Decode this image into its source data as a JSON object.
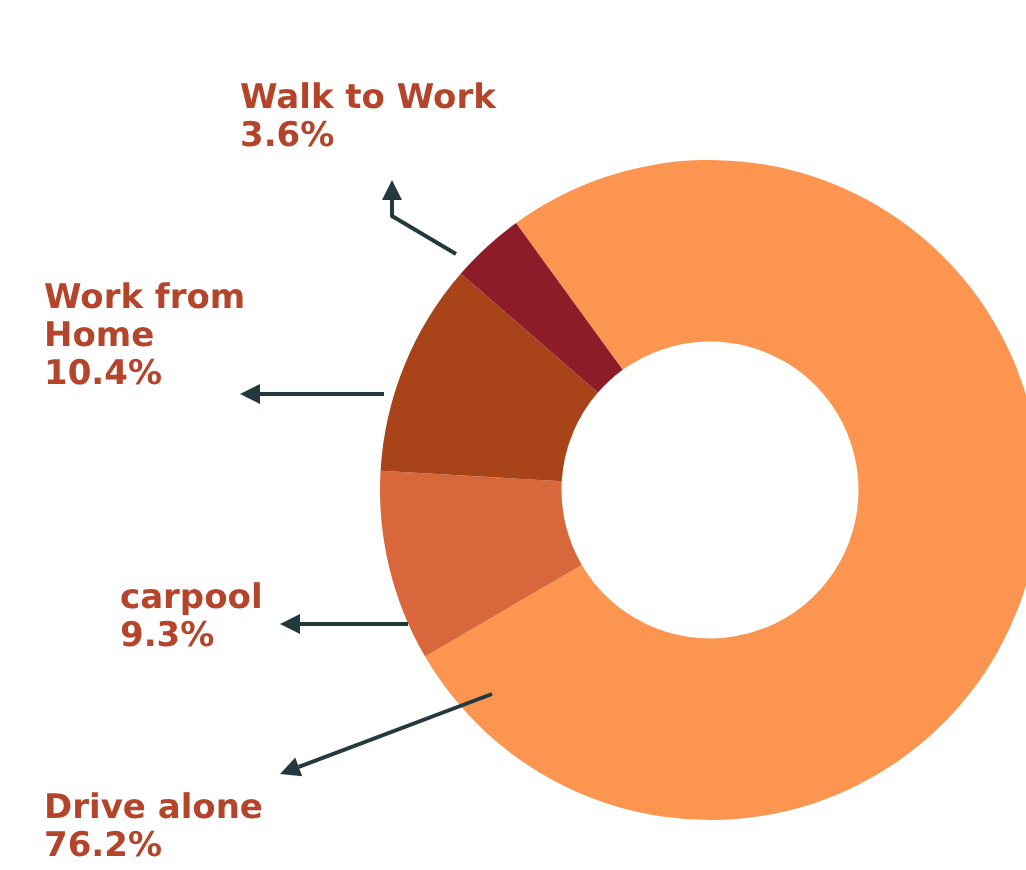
{
  "chart_data": {
    "type": "donut",
    "categories": [
      "Drive alone",
      "carpool",
      "Work from Home",
      "Walk to Work"
    ],
    "values": [
      76.2,
      9.3,
      10.4,
      3.6
    ],
    "value_labels": [
      "76.2%",
      "9.3%",
      "10.4%",
      "3.6%"
    ],
    "colors": [
      "#fb9550",
      "#d8673b",
      "#a9441a",
      "#8e1c28"
    ],
    "legend": false
  }
}
